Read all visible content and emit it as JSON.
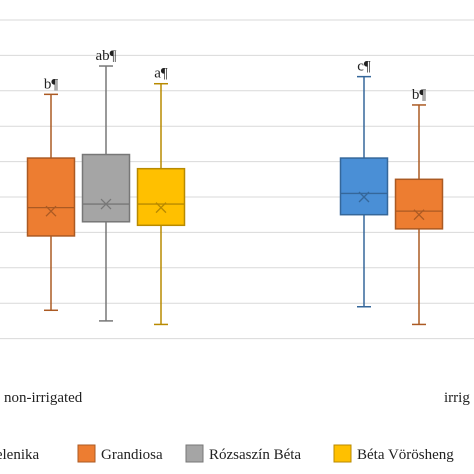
{
  "chart_data": {
    "type": "box",
    "categories": [
      "non-irrigated",
      "irrig"
    ],
    "legend": {
      "placement": "bottom",
      "entries": [
        {
          "name": "Helenika",
          "color": "#4a8fd6"
        },
        {
          "name": "Grandiosa",
          "color": "#ed7d31"
        },
        {
          "name": "Rózsaszín Béta",
          "color": "#a5a5a5"
        },
        {
          "name": "Béta Vörösheng",
          "color": "#ffc000"
        }
      ]
    },
    "grid": true,
    "ylim": [
      0,
      1
    ],
    "boxes": [
      {
        "group": "non-irrigated",
        "series": "Grandiosa",
        "min": 0.18,
        "q1": 0.39,
        "median": 0.47,
        "q3": 0.61,
        "max": 0.79,
        "mean": 0.46,
        "label": "b¶"
      },
      {
        "group": "non-irrigated",
        "series": "Rózsaszín Béta",
        "min": 0.15,
        "q1": 0.43,
        "median": 0.48,
        "q3": 0.62,
        "max": 0.87,
        "mean": 0.48,
        "label": "ab¶"
      },
      {
        "group": "non-irrigated",
        "series": "Béta Vörösheng",
        "min": 0.14,
        "q1": 0.42,
        "median": 0.48,
        "q3": 0.58,
        "max": 0.82,
        "mean": 0.47,
        "label": "a¶"
      },
      {
        "group": "irrig",
        "series": "Helenika",
        "min": 0.19,
        "q1": 0.45,
        "median": 0.51,
        "q3": 0.61,
        "max": 0.84,
        "mean": 0.5,
        "label": "c¶"
      },
      {
        "group": "irrig",
        "series": "Grandiosa",
        "min": 0.14,
        "q1": 0.41,
        "median": 0.46,
        "q3": 0.55,
        "max": 0.76,
        "mean": 0.45,
        "label": "b¶"
      }
    ]
  }
}
